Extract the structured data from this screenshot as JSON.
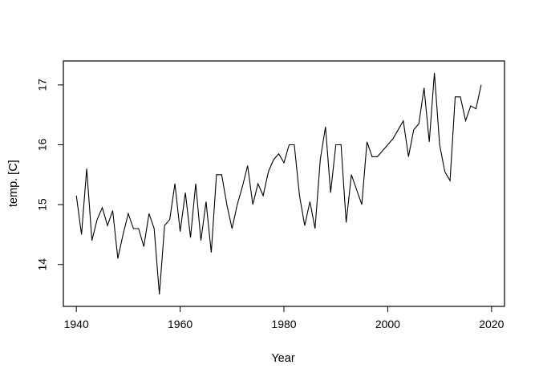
{
  "figure": {
    "background": "#ffffff",
    "line_color": "#000000",
    "axis_color": "#000000",
    "text_color": "#000000"
  },
  "chart_data": {
    "type": "line",
    "title": "",
    "xlabel": "Year",
    "ylabel": "temp. [C]",
    "grid": false,
    "legend": "none",
    "xlim": [
      1937.5,
      2022.5
    ],
    "ylim": [
      13.3,
      17.4
    ],
    "x_ticks": [
      1940,
      1960,
      1980,
      2000,
      2020
    ],
    "y_ticks": [
      14,
      15,
      16,
      17
    ],
    "x": [
      1940,
      1941,
      1942,
      1943,
      1944,
      1945,
      1946,
      1947,
      1948,
      1949,
      1950,
      1951,
      1952,
      1953,
      1954,
      1955,
      1956,
      1957,
      1958,
      1959,
      1960,
      1961,
      1962,
      1963,
      1964,
      1965,
      1966,
      1967,
      1968,
      1969,
      1970,
      1971,
      1972,
      1973,
      1974,
      1975,
      1976,
      1977,
      1978,
      1979,
      1980,
      1981,
      1982,
      1983,
      1984,
      1985,
      1986,
      1987,
      1988,
      1989,
      1990,
      1991,
      1992,
      1993,
      1994,
      1995,
      1996,
      1997,
      1998,
      1999,
      2000,
      2001,
      2002,
      2003,
      2004,
      2005,
      2006,
      2007,
      2008,
      2009,
      2010,
      2011,
      2012,
      2013,
      2014,
      2015,
      2016,
      2017,
      2018
    ],
    "values": [
      15.15,
      14.5,
      15.6,
      14.4,
      14.75,
      14.95,
      14.65,
      14.9,
      14.1,
      14.5,
      14.85,
      14.6,
      14.6,
      14.3,
      14.85,
      14.6,
      13.5,
      14.65,
      14.75,
      15.35,
      14.55,
      15.2,
      14.45,
      15.35,
      14.4,
      15.05,
      14.2,
      15.5,
      15.5,
      15.0,
      14.6,
      15.0,
      15.3,
      15.65,
      15.0,
      15.35,
      15.15,
      15.55,
      15.75,
      15.85,
      15.7,
      16.0,
      16.0,
      15.15,
      14.65,
      15.05,
      14.6,
      15.75,
      16.3,
      15.2,
      16.0,
      16.0,
      14.7,
      15.5,
      15.25,
      15.0,
      16.05,
      15.8,
      15.8,
      15.9,
      16.0,
      16.1,
      16.25,
      16.4,
      15.8,
      16.25,
      16.35,
      16.95,
      16.05,
      17.2,
      16.0,
      15.55,
      15.4,
      16.8,
      16.8,
      16.4,
      16.65,
      16.6,
      17.0
    ]
  }
}
